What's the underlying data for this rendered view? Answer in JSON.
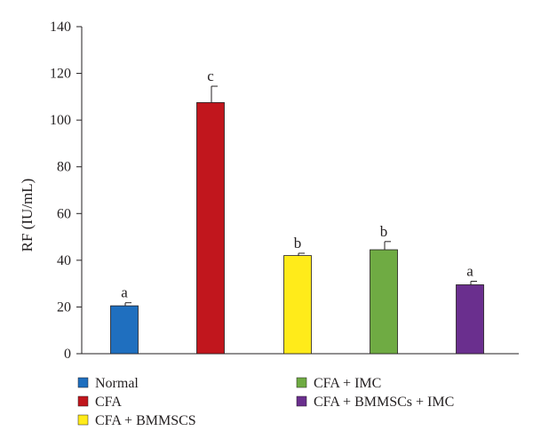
{
  "chart_data": {
    "type": "bar",
    "title": "",
    "xlabel": "",
    "ylabel": "RF (IU/mL)",
    "ylim": [
      0,
      140
    ],
    "yticks": [
      0,
      20,
      40,
      60,
      80,
      100,
      120,
      140
    ],
    "grid": false,
    "legend_position": "bottom",
    "categories": [
      "Normal",
      "CFA",
      "CFA + BMMSCS",
      "CFA + IMC",
      "CFA + BMMSCs + IMC"
    ],
    "values": [
      20.5,
      107.5,
      42,
      44.5,
      29.5
    ],
    "errors": [
      1.3,
      7,
      1,
      3.5,
      1.5
    ],
    "significance": [
      "a",
      "c",
      "b",
      "b",
      "a"
    ],
    "colors": [
      "#1f6fbf",
      "#c1161d",
      "#ffeb1a",
      "#6fab43",
      "#6a2f8e"
    ]
  }
}
